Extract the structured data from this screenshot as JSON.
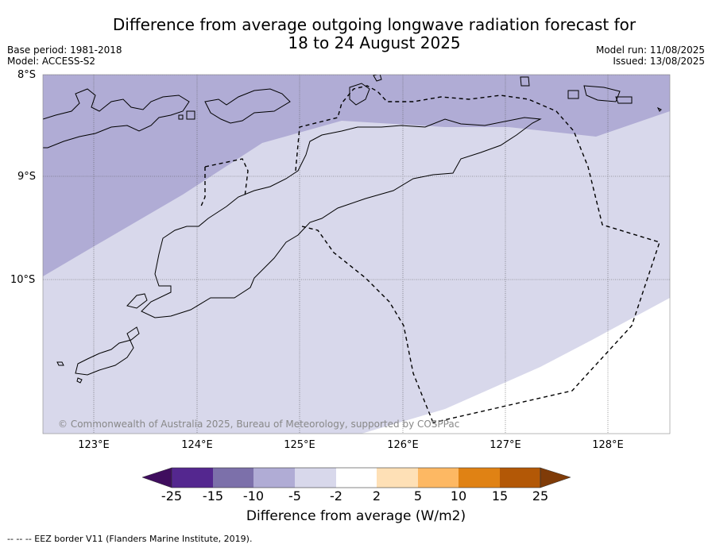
{
  "title": {
    "line1": "Difference from average outgoing longwave radiation forecast for",
    "line2": "18 to 24 August 2025"
  },
  "meta_left": {
    "base_period": "Base period: 1981-2018",
    "model": "Model: ACCESS-S2"
  },
  "meta_right": {
    "model_run": "Model run: 11/08/2025",
    "issued": "Issued: 13/08/2025"
  },
  "map": {
    "latitude_labels": [
      "8°S",
      "9°S",
      "10°S"
    ],
    "longitude_labels": [
      "123°E",
      "124°E",
      "125°E",
      "126°E",
      "127°E",
      "128°E"
    ],
    "copyright": "© Commonwealth of Australia 2025, Bureau of Meteorology, supported by COSPPac",
    "colors": {
      "band_minus15_to_minus10": "#b0acd5",
      "band_minus10_to_minus5": "#d8d8eb",
      "band_minus2_to_2": "#ffffff",
      "coastline": "#000000",
      "eez_border": "#000000"
    }
  },
  "colorbar": {
    "ticks": [
      "-25",
      "-15",
      "-10",
      "-5",
      "-2",
      "2",
      "5",
      "10",
      "15",
      "25"
    ],
    "colors": [
      "#3f0d5e",
      "#54278f",
      "#7c70aa",
      "#b0acd5",
      "#d8d8eb",
      "#ffffff",
      "#fee0b6",
      "#fdb863",
      "#e08214",
      "#b35806",
      "#7f3b08"
    ],
    "label": "Difference from average (W/m2)"
  },
  "footer": "--  --  -- EEZ border V11 (Flanders Marine Institute, 2019)."
}
